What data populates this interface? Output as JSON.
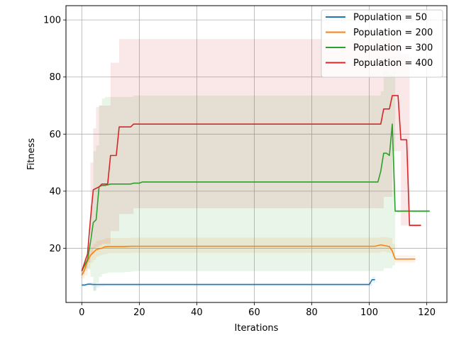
{
  "chart_data": {
    "type": "line",
    "title": "",
    "xlabel": "Iterations",
    "ylabel": "Fitness",
    "xlim": [
      -5.5,
      127
    ],
    "ylim": [
      1,
      105
    ],
    "x_ticks": [
      0,
      20,
      40,
      60,
      80,
      100,
      120
    ],
    "y_ticks": [
      20,
      40,
      60,
      80,
      100
    ],
    "grid": true,
    "legend_position": "top-right",
    "series": [
      {
        "name": "Population = 50",
        "color": "#1f77b4",
        "x": [
          0,
          1,
          2,
          3,
          4,
          5,
          6,
          7,
          8,
          10,
          20,
          40,
          60,
          80,
          100,
          101,
          102
        ],
        "y": [
          7.1,
          7.1,
          7.4,
          7.4,
          7.3,
          7.3,
          7.3,
          7.3,
          7.3,
          7.3,
          7.3,
          7.3,
          7.3,
          7.3,
          7.3,
          9,
          9
        ],
        "band_lower": [
          6.6,
          6.6,
          6.8,
          6.8,
          5.3,
          6.2,
          6.6,
          6.6,
          6.8,
          6.8,
          6.8,
          6.8,
          6.8,
          6.8,
          6.8,
          8,
          8
        ],
        "band_upper": [
          7.6,
          7.6,
          8,
          8,
          7.8,
          7.8,
          7.8,
          7.8,
          7.8,
          7.8,
          7.8,
          7.8,
          7.8,
          7.8,
          7.8,
          10,
          10
        ]
      },
      {
        "name": "Population = 200",
        "color": "#ff7f0e",
        "x": [
          0,
          1,
          2,
          3,
          4,
          5,
          6,
          7,
          8,
          9,
          10,
          15,
          17,
          20,
          40,
          60,
          80,
          100,
          102,
          104,
          106,
          107,
          108,
          109,
          110,
          116
        ],
        "y": [
          10.5,
          12.5,
          15.5,
          17.5,
          18.5,
          19.5,
          19.8,
          20.0,
          20.5,
          20.6,
          20.6,
          20.6,
          20.7,
          20.7,
          20.7,
          20.7,
          20.7,
          20.7,
          20.7,
          21.2,
          20.8,
          20.6,
          19.0,
          16.2,
          16.2,
          16.2
        ],
        "band_lower": [
          9.5,
          10.5,
          13,
          15,
          16,
          17,
          17.5,
          17.8,
          18,
          18.3,
          18.3,
          18.3,
          18.4,
          18.4,
          18.4,
          18.4,
          18.4,
          18.4,
          18.4,
          18.8,
          18.5,
          18.3,
          17,
          15,
          15,
          15
        ],
        "band_upper": [
          11.5,
          14,
          18,
          20.5,
          21.5,
          22.5,
          22.8,
          23,
          23.5,
          23.6,
          23.6,
          23.6,
          23.7,
          23.7,
          23.7,
          23.7,
          23.7,
          23.7,
          23.7,
          24,
          23.8,
          23.6,
          21.5,
          17.5,
          17.5,
          17.5
        ]
      },
      {
        "name": "Population = 300",
        "color": "#2ca02c",
        "x": [
          0,
          1,
          2,
          3,
          4,
          5,
          6,
          7,
          8,
          9,
          10,
          15,
          17,
          18,
          20,
          21,
          40,
          60,
          80,
          100,
          103,
          104,
          105,
          106,
          107,
          108,
          109,
          110,
          121
        ],
        "y": [
          12,
          14,
          16,
          22,
          29,
          30,
          41.5,
          42,
          42,
          42.2,
          42.5,
          42.5,
          42.5,
          42.8,
          42.8,
          43.2,
          43.2,
          43.2,
          43.2,
          43.2,
          43.2,
          47,
          53.3,
          53.3,
          52.5,
          63.5,
          33,
          33,
          33
        ],
        "band_lower": [
          11,
          12,
          12.5,
          10,
          5,
          8,
          10,
          11,
          11.2,
          11.5,
          11.5,
          11.7,
          11.8,
          12,
          12,
          12,
          12,
          12,
          12,
          12,
          12,
          12,
          13,
          13,
          13,
          14,
          32.5,
          32.5,
          32.5
        ],
        "band_upper": [
          13,
          16,
          20,
          35,
          54,
          56,
          70,
          72.5,
          73,
          73,
          73,
          73,
          73,
          73.5,
          73.5,
          73.5,
          73.5,
          73.5,
          73.5,
          73.5,
          73.5,
          75,
          82,
          82,
          81,
          82,
          33.5,
          33.5,
          33.5
        ]
      },
      {
        "name": "Population = 400",
        "color": "#d62728",
        "x": [
          0,
          1,
          2,
          3,
          4,
          5,
          6,
          7,
          8,
          9,
          10,
          11,
          12,
          13,
          14,
          15,
          16,
          17,
          18,
          20,
          40,
          60,
          80,
          100,
          104,
          105,
          106,
          107,
          108,
          109,
          110,
          111,
          112,
          113,
          114,
          115,
          116,
          117,
          118
        ],
        "y": [
          12,
          15,
          18,
          30,
          40.5,
          41,
          41.5,
          42.5,
          42.5,
          42.5,
          52.5,
          52.5,
          52.5,
          62.5,
          62.5,
          62.5,
          62.5,
          62.5,
          63.5,
          63.5,
          63.5,
          63.5,
          63.5,
          63.5,
          63.5,
          68.8,
          68.8,
          68.8,
          73.5,
          73.5,
          73.5,
          58,
          58,
          58,
          28,
          28,
          28,
          28,
          28
        ],
        "band_lower": [
          11,
          13,
          15,
          18,
          20,
          20.5,
          21,
          21.5,
          21.5,
          21.5,
          26,
          26,
          26,
          32,
          32,
          32,
          32,
          32,
          34,
          34,
          34,
          34,
          34,
          34,
          34,
          38,
          38,
          38,
          54,
          54,
          54,
          28,
          28,
          28,
          27.5,
          27.5,
          27.5,
          27.5,
          27.5
        ],
        "band_upper": [
          13,
          17,
          22,
          50,
          62,
          69.5,
          70,
          70,
          70,
          70,
          85,
          85,
          85,
          93.3,
          93.3,
          93.3,
          93.3,
          93.3,
          93.3,
          93.3,
          93.3,
          93.3,
          93.3,
          93.3,
          93.3,
          93.3,
          93.3,
          93.3,
          93.3,
          93.3,
          93.3,
          88,
          88,
          88,
          28.5,
          28.5,
          28.5,
          28.5,
          28.5
        ]
      }
    ]
  }
}
